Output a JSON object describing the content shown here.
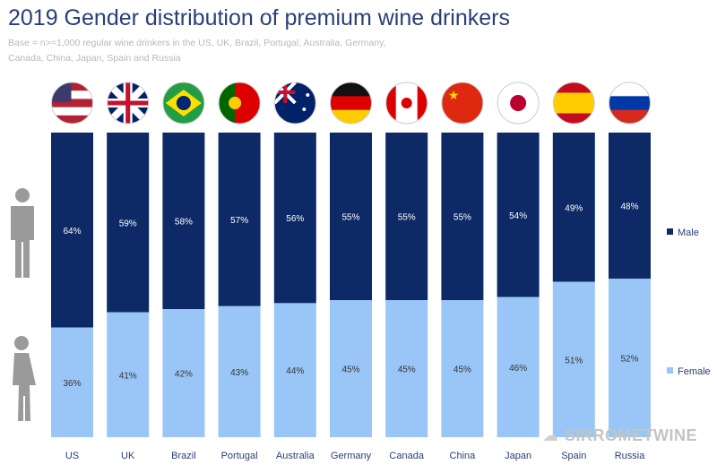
{
  "title": "2019 Gender distribution of premium wine drinkers",
  "subtitle": "Base = n>=1,000 regular wine drinkers in the US, UK, Brazil, Portugal, Australia, Germany, Canada, China, Japan, Spain and Russia",
  "watermark": "SIRROMETWINE",
  "colors": {
    "male": "#0d2a66",
    "female": "#99c6f7"
  },
  "chart_data": {
    "type": "bar",
    "stacked": true,
    "title": "2019 Gender distribution of premium wine drinkers",
    "categories": [
      "US",
      "UK",
      "Brazil",
      "Portugal",
      "Australia",
      "Germany",
      "Canada",
      "China",
      "Japan",
      "Spain",
      "Russia"
    ],
    "series": [
      {
        "name": "Female",
        "values": [
          36,
          41,
          42,
          43,
          44,
          45,
          45,
          45,
          46,
          51,
          52
        ]
      },
      {
        "name": "Male",
        "values": [
          64,
          59,
          58,
          57,
          56,
          55,
          55,
          55,
          54,
          49,
          48
        ]
      }
    ],
    "ylim": [
      0,
      100
    ],
    "legend": "right",
    "value_suffix": "%"
  }
}
